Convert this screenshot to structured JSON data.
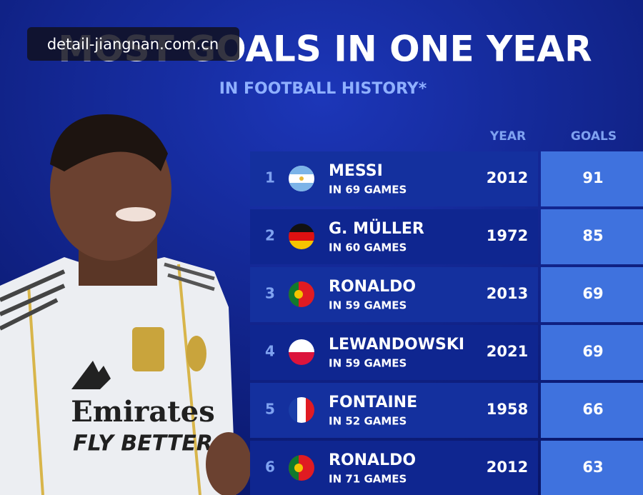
{
  "watermark": "detail-jiangnan.com.cn",
  "header": {
    "title": "MOST GOALS IN ONE YEAR",
    "subtitle": "IN FOOTBALL HISTORY*"
  },
  "table": {
    "columns": [
      "YEAR",
      "GOALS"
    ],
    "rows": [
      {
        "rank": 1,
        "name": "MESSI",
        "games": "IN 69 GAMES",
        "year": 2012,
        "goals": 91
      },
      {
        "rank": 2,
        "name": "G. MÜLLER",
        "games": "IN 60 GAMES",
        "year": 1972,
        "goals": 85
      },
      {
        "rank": 3,
        "name": "RONALDO",
        "games": "IN 59 GAMES",
        "year": 2013,
        "goals": 69
      },
      {
        "rank": 4,
        "name": "LEWANDOWSKI",
        "games": "IN 59 GAMES",
        "year": 2021,
        "goals": 69
      },
      {
        "rank": 5,
        "name": "FONTAINE",
        "games": "IN 52 GAMES",
        "year": 1958,
        "goals": 66
      },
      {
        "rank": 6,
        "name": "RONALDO",
        "games": "IN 71 GAMES",
        "year": 2012,
        "goals": 63
      }
    ]
  },
  "photo": {
    "shirt_sponsor": "Emirates",
    "shirt_slogan": "FLY BETTER"
  }
}
